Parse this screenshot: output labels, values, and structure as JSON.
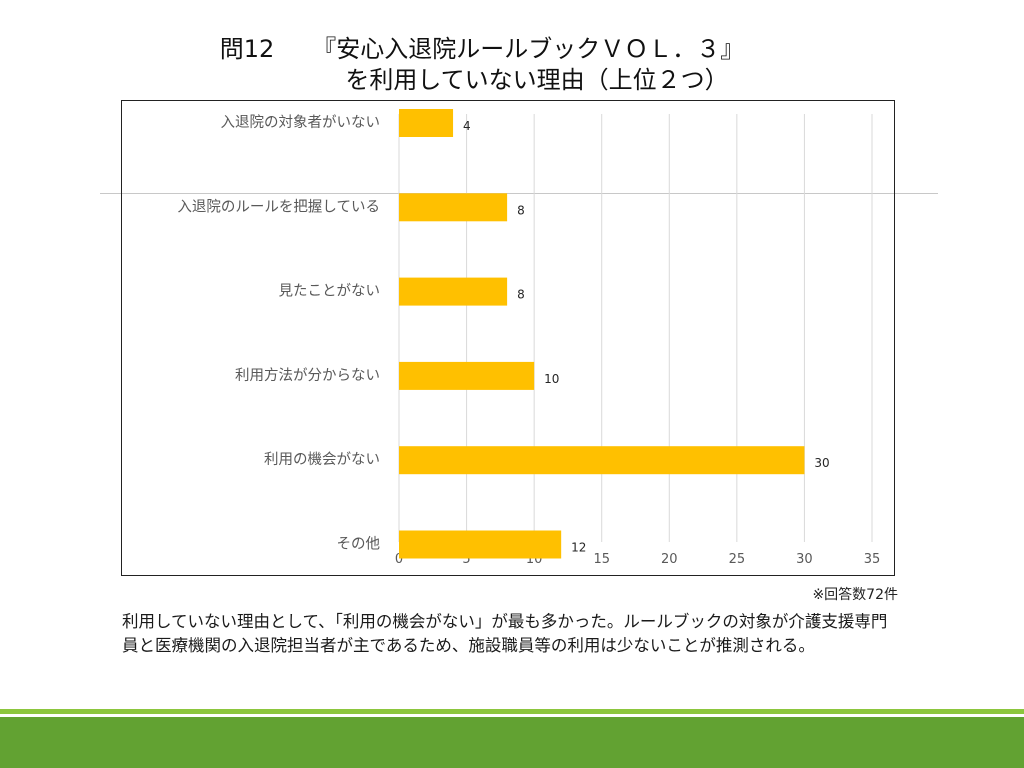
{
  "title": {
    "question_number": "問12",
    "line1": "『安心入退院ルールブックＶＯＬ．３』",
    "line2": "を利用していない理由（上位２つ）"
  },
  "chart_data": {
    "type": "bar",
    "orientation": "horizontal",
    "categories": [
      "入退院の対象者がいない",
      "入退院のルールを把握している",
      "見たことがない",
      "利用方法が分からない",
      "利用の機会がない",
      "その他"
    ],
    "values": [
      4,
      8,
      8,
      10,
      30,
      12
    ],
    "xlim": [
      0,
      35
    ],
    "xticks": [
      0,
      5,
      10,
      15,
      20,
      25,
      30,
      35
    ],
    "grid": true,
    "bar_color": "#ffc000",
    "title": "",
    "xlabel": "",
    "ylabel": ""
  },
  "note": "※回答数72件",
  "description": "利用していない理由として、「利用の機会がない」が最も多かった。ルールブックの対象が介護支援専門員と医療機関の入退院担当者が主であるため、施設職員等の利用は少ないことが推測される。",
  "colors": {
    "footer_light": "#8cc63e",
    "footer_dark": "#62a232",
    "gridline": "#d9d9d9"
  }
}
